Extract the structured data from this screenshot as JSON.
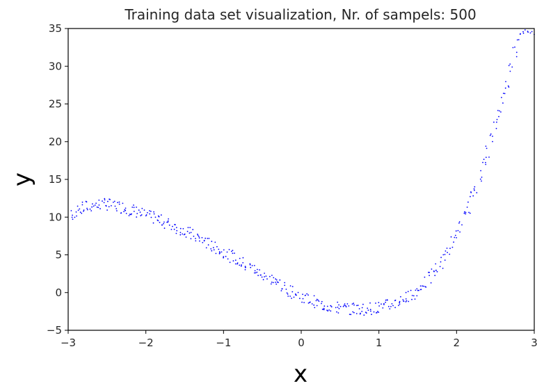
{
  "colors": {
    "points": "#0000ff",
    "axes": "#000000",
    "background": "#ffffff"
  },
  "chart_data": {
    "type": "scatter",
    "title": "Training data set visualization, Nr. of sampels: 500",
    "xlabel": "x",
    "ylabel": "y",
    "xlim": [
      -3,
      3
    ],
    "ylim": [
      -5,
      35
    ],
    "grid": false,
    "xticks": [
      -3,
      -2,
      -1,
      0,
      1,
      2,
      3
    ],
    "xtick_labels": [
      "−3",
      "−2",
      "−1",
      "0",
      "1",
      "2",
      "3"
    ],
    "yticks": [
      -5,
      0,
      5,
      10,
      15,
      20,
      25,
      30,
      35
    ],
    "ytick_labels": [
      "−5",
      "0",
      "5",
      "10",
      "15",
      "20",
      "25",
      "30",
      "35"
    ],
    "series": [
      {
        "marker": "point",
        "x": [
          -3.0,
          -2.95,
          -2.9,
          -2.85,
          -2.8,
          -2.75,
          -2.7,
          -2.65,
          -2.6,
          -2.55,
          -2.5,
          -2.45,
          -2.4,
          -2.35,
          -2.3,
          -2.25,
          -2.2,
          -2.15,
          -2.1,
          -2.05,
          -2.0,
          -1.95,
          -1.9,
          -1.85,
          -1.8,
          -1.75,
          -1.7,
          -1.65,
          -1.6,
          -1.55,
          -1.5,
          -1.45,
          -1.4,
          -1.35,
          -1.3,
          -1.25,
          -1.2,
          -1.15,
          -1.1,
          -1.05,
          -1.0,
          -0.95,
          -0.9,
          -0.85,
          -0.8,
          -0.75,
          -0.7,
          -0.65,
          -0.6,
          -0.55,
          -0.5,
          -0.45,
          -0.4,
          -0.35,
          -0.3,
          -0.25,
          -0.2,
          -0.15,
          -0.1,
          -0.05,
          0.0,
          0.05,
          0.1,
          0.15,
          0.2,
          0.25,
          0.3,
          0.35,
          0.4,
          0.45,
          0.5,
          0.55,
          0.6,
          0.65,
          0.7,
          0.75,
          0.8,
          0.85,
          0.9,
          0.95,
          1.0,
          1.05,
          1.1,
          1.15,
          1.2,
          1.25,
          1.3,
          1.35,
          1.4,
          1.45,
          1.5,
          1.55,
          1.6,
          1.65,
          1.7,
          1.75,
          1.8,
          1.85,
          1.9,
          1.95,
          2.0,
          2.05,
          2.1,
          2.15,
          2.2,
          2.25,
          2.3,
          2.35,
          2.4,
          2.45,
          2.5,
          2.55,
          2.6,
          2.65,
          2.7,
          2.75,
          2.8,
          2.85,
          2.9,
          2.95,
          3.0
        ],
        "y": [
          10.0,
          10.4,
          10.7,
          11.0,
          11.2,
          11.4,
          11.5,
          11.6,
          11.7,
          11.7,
          11.7,
          11.6,
          11.5,
          11.4,
          11.3,
          11.2,
          11.0,
          10.9,
          10.7,
          10.5,
          10.3,
          10.1,
          9.9,
          9.7,
          9.5,
          9.3,
          9.1,
          8.9,
          8.6,
          8.4,
          8.1,
          7.9,
          7.6,
          7.4,
          7.1,
          6.8,
          6.5,
          6.2,
          5.9,
          5.7,
          5.4,
          5.1,
          4.8,
          4.5,
          4.2,
          3.9,
          3.6,
          3.3,
          3.0,
          2.7,
          2.4,
          2.1,
          1.8,
          1.5,
          1.2,
          0.9,
          0.6,
          0.3,
          0.0,
          -0.3,
          -0.5,
          -0.8,
          -1.0,
          -1.2,
          -1.4,
          -1.6,
          -1.7,
          -1.8,
          -1.9,
          -2.0,
          -2.1,
          -2.1,
          -2.1,
          -2.2,
          -2.2,
          -2.2,
          -2.2,
          -2.1,
          -2.1,
          -2.0,
          -2.0,
          -1.9,
          -1.7,
          -1.6,
          -1.4,
          -1.2,
          -1.0,
          -0.7,
          -0.4,
          -0.1,
          0.3,
          0.8,
          1.3,
          1.9,
          2.5,
          3.2,
          4.0,
          4.8,
          5.7,
          6.7,
          7.7,
          8.8,
          10.0,
          11.3,
          12.6,
          14.0,
          15.5,
          17.1,
          18.7,
          20.4,
          22.2,
          24.0,
          25.9,
          27.8,
          29.8,
          31.9,
          33.9,
          35.0,
          35.0,
          35.0,
          35.0
        ],
        "noise": 0.8
      }
    ]
  }
}
